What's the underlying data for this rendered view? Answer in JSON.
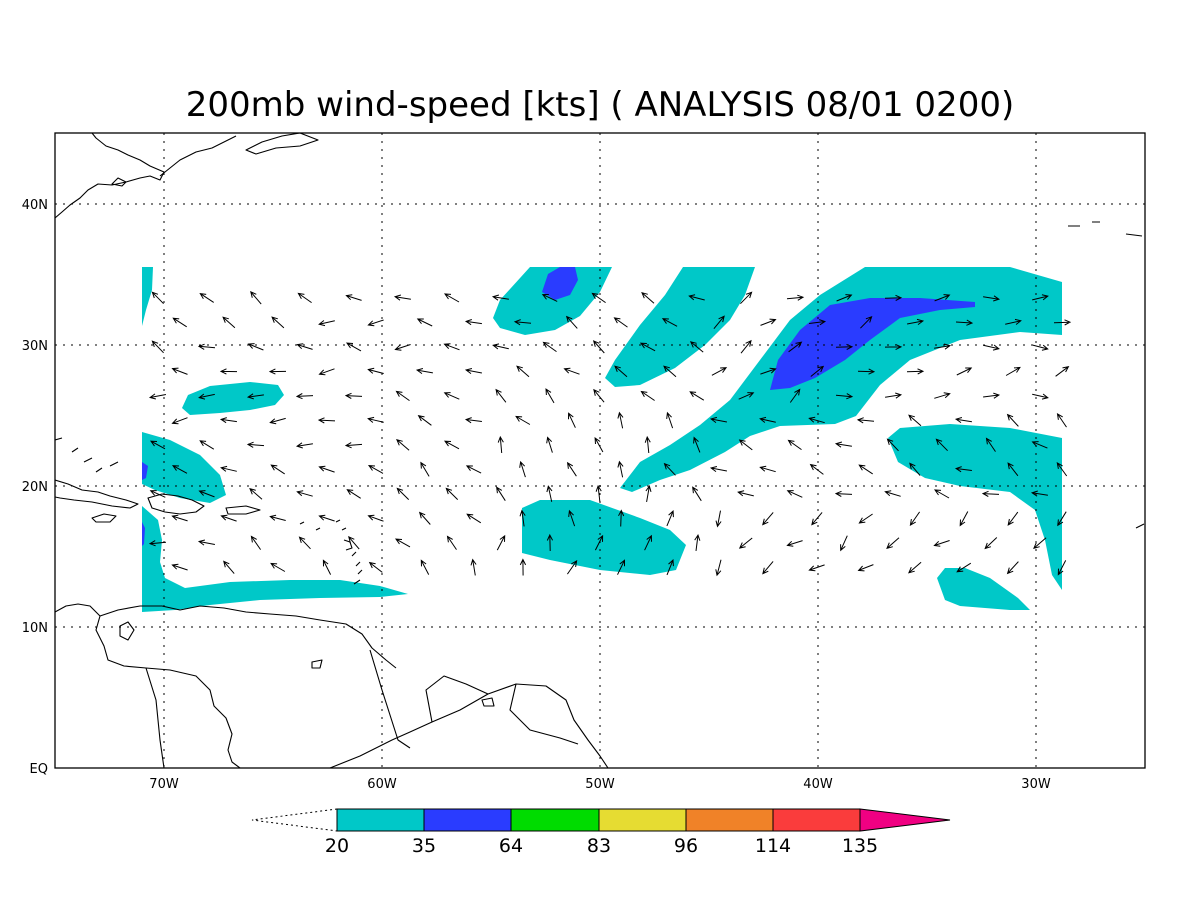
{
  "map": {
    "title": "200mb wind-speed [kts] ( ANALYSIS 08/01 0200)",
    "lon_range": [
      -75,
      -25
    ],
    "lat_range": [
      0,
      45
    ],
    "lon_ticks": [
      {
        "value": -70,
        "label": "70W"
      },
      {
        "value": -60,
        "label": "60W"
      },
      {
        "value": -50,
        "label": "50W"
      },
      {
        "value": -40,
        "label": "40W"
      },
      {
        "value": -30,
        "label": "30W"
      }
    ],
    "lat_ticks": [
      {
        "value": 0,
        "label": "EQ"
      },
      {
        "value": 10,
        "label": "10N"
      },
      {
        "value": 20,
        "label": "20N"
      },
      {
        "value": 30,
        "label": "30N"
      },
      {
        "value": 40,
        "label": "40N"
      }
    ],
    "grid": true,
    "shading": {
      "ranges": [
        {
          "from": 20,
          "to": 35,
          "color": "#00c8c8"
        },
        {
          "from": 35,
          "to": 64,
          "color": "#2a3cff"
        },
        {
          "from": 64,
          "to": 83,
          "color": "#00dc00"
        },
        {
          "from": 83,
          "to": 96,
          "color": "#e6dc32"
        },
        {
          "from": 96,
          "to": 114,
          "color": "#f08228"
        },
        {
          "from": 114,
          "to": 135,
          "color": "#fa3c3c"
        },
        {
          "from": 135,
          "to": null,
          "color": "#f00082"
        }
      ]
    }
  },
  "colorbar": {
    "labels": [
      "20",
      "35",
      "64",
      "83",
      "96",
      "114",
      "135"
    ],
    "colors": [
      "#00c8c8",
      "#2a3cff",
      "#00dc00",
      "#e6dc32",
      "#f08228",
      "#fa3c3c",
      "#f00082"
    ]
  }
}
